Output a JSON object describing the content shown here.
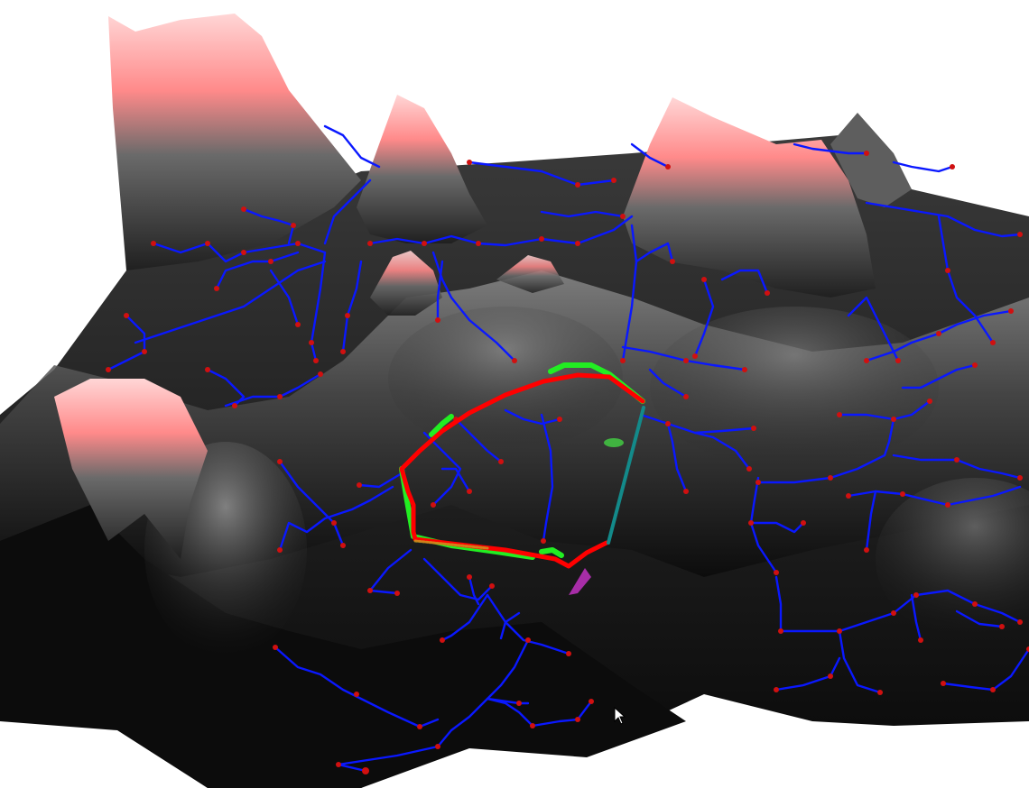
{
  "scene": {
    "colors": {
      "background": "#ffffff",
      "terrain_low": "#050505",
      "terrain_mid": "#5a5a5a",
      "terrain_high": "#ff8888",
      "network": "#0a18ff",
      "node": "#d01010",
      "route_red": "#ff0000",
      "route_green": "#22ee22",
      "link_teal": "#138a8a",
      "marker_green": "#44dd44",
      "marker_magenta": "#cc33cc"
    },
    "icons": {
      "cursor": "mouse-pointer-icon"
    }
  }
}
